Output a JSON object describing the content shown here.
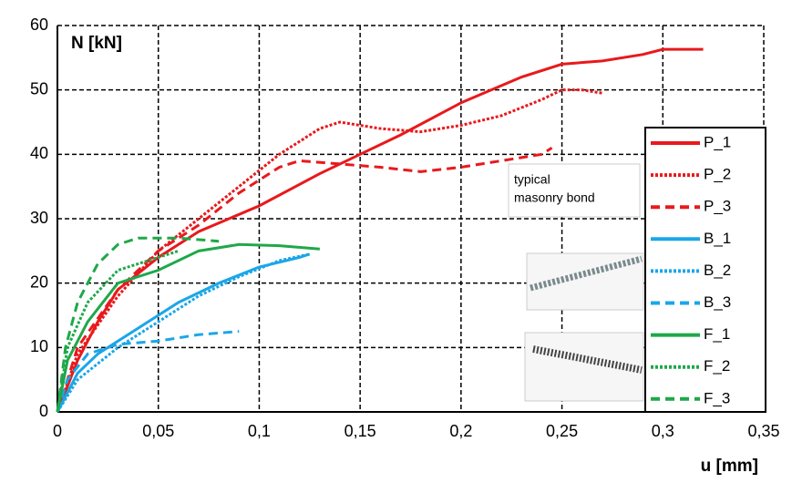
{
  "chart_data": {
    "type": "line",
    "ylabel": "N [kN]",
    "xlabel": "u [mm]",
    "annotation": [
      "typical",
      "masonry bond"
    ],
    "xlim": [
      0,
      0.35
    ],
    "xticks": [
      0,
      {
        "value": 0.05,
        "label": "0,05"
      },
      {
        "value": 0.1,
        "label": "0,1"
      },
      {
        "value": 0.15,
        "label": "0,15"
      },
      {
        "value": 0.2,
        "label": "0,2"
      },
      {
        "value": 0.25,
        "label": "0,25"
      },
      {
        "value": 0.3,
        "label": "0,3"
      },
      {
        "value": 0.35,
        "label": "0,35"
      }
    ],
    "ylim": [
      0,
      60
    ],
    "yticks": [
      0,
      10,
      20,
      30,
      40,
      50,
      60
    ],
    "grid": true,
    "series": [
      {
        "name": "P_1",
        "color": "#e8191c",
        "dash": "solid",
        "x": [
          0,
          0.01,
          0.02,
          0.03,
          0.05,
          0.07,
          0.1,
          0.13,
          0.15,
          0.17,
          0.2,
          0.23,
          0.25,
          0.27,
          0.29,
          0.3,
          0.32
        ],
        "values": [
          0,
          8,
          14,
          19,
          24,
          28,
          32,
          37,
          40,
          43,
          48,
          52,
          54,
          54.5,
          55.5,
          56.3,
          56.3
        ]
      },
      {
        "name": "P_2",
        "color": "#e8191c",
        "dash": "dotted",
        "x": [
          0,
          0.01,
          0.03,
          0.05,
          0.07,
          0.09,
          0.11,
          0.13,
          0.14,
          0.16,
          0.18,
          0.2,
          0.22,
          0.24,
          0.25,
          0.26,
          0.27
        ],
        "values": [
          0,
          9,
          18,
          25,
          30,
          35,
          40,
          44,
          45,
          44,
          43.5,
          44.5,
          46,
          48.5,
          50,
          50,
          49.5
        ]
      },
      {
        "name": "P_3",
        "color": "#e8191c",
        "dash": "dashed",
        "x": [
          0,
          0.01,
          0.03,
          0.05,
          0.07,
          0.09,
          0.11,
          0.12,
          0.14,
          0.16,
          0.18,
          0.2,
          0.22,
          0.24,
          0.245
        ],
        "values": [
          0,
          10,
          19,
          25,
          29,
          34,
          38,
          39,
          38.5,
          38,
          37.3,
          38,
          39,
          40,
          41
        ]
      },
      {
        "name": "B_1",
        "color": "#1ba6e8",
        "dash": "solid",
        "x": [
          0,
          0.01,
          0.02,
          0.04,
          0.06,
          0.08,
          0.1,
          0.12,
          0.125
        ],
        "values": [
          0,
          6,
          9,
          13,
          17,
          20,
          22.5,
          24,
          24.5
        ]
      },
      {
        "name": "B_2",
        "color": "#1ba6e8",
        "dash": "dotted",
        "x": [
          0,
          0.01,
          0.03,
          0.05,
          0.07,
          0.09,
          0.11,
          0.125
        ],
        "values": [
          0,
          5,
          10,
          14,
          18,
          21,
          23.5,
          24.5
        ]
      },
      {
        "name": "B_3",
        "color": "#1ba6e8",
        "dash": "dashed",
        "x": [
          0,
          0.005,
          0.015,
          0.03,
          0.05,
          0.07,
          0.09
        ],
        "values": [
          0,
          5,
          9,
          10.5,
          11,
          12,
          12.5
        ]
      },
      {
        "name": "F_1",
        "color": "#1fa84a",
        "dash": "solid",
        "x": [
          0,
          0.005,
          0.015,
          0.03,
          0.05,
          0.07,
          0.09,
          0.11,
          0.13
        ],
        "values": [
          0,
          8,
          14,
          20,
          22,
          25,
          26,
          25.8,
          25.3
        ]
      },
      {
        "name": "F_2",
        "color": "#1fa84a",
        "dash": "dotted",
        "x": [
          0,
          0.005,
          0.015,
          0.03,
          0.05,
          0.06
        ],
        "values": [
          0,
          10,
          17,
          22,
          24,
          25
        ]
      },
      {
        "name": "F_3",
        "color": "#1fa84a",
        "dash": "dashed",
        "x": [
          0,
          0.004,
          0.01,
          0.02,
          0.03,
          0.04,
          0.06,
          0.08
        ],
        "values": [
          0,
          10,
          17,
          23,
          26,
          27,
          27,
          26.5
        ]
      }
    ]
  }
}
